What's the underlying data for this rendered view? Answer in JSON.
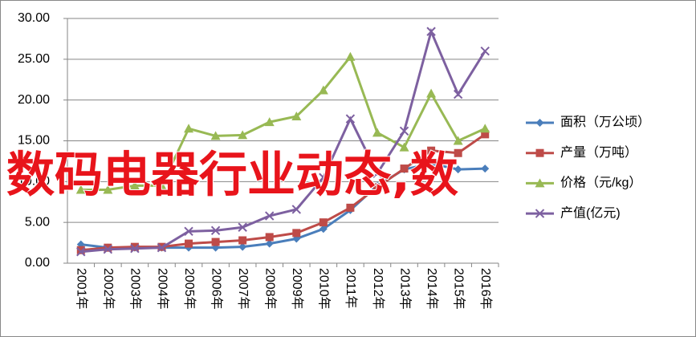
{
  "chart_data": {
    "type": "line",
    "categories": [
      "2001年",
      "2002年",
      "2003年",
      "2004年",
      "2005年",
      "2006年",
      "2007年",
      "2008年",
      "2009年",
      "2010年",
      "2011年",
      "2012年",
      "2013年",
      "2014年",
      "2015年",
      "2016年"
    ],
    "series": [
      {
        "name": "面积（万公顷）",
        "color": "#4a7ebb",
        "marker": "diamond",
        "values": [
          2.3,
          1.9,
          1.9,
          1.9,
          1.9,
          1.9,
          2.0,
          2.4,
          3.0,
          4.2,
          6.5,
          9.5,
          11.5,
          12.2,
          11.5,
          11.6
        ]
      },
      {
        "name": "产量（万吨）",
        "color": "#be4b48",
        "marker": "square",
        "values": [
          1.6,
          1.9,
          2.0,
          2.0,
          2.4,
          2.6,
          2.8,
          3.2,
          3.7,
          5.0,
          6.8,
          9.3,
          11.6,
          13.8,
          13.5,
          15.8
        ]
      },
      {
        "name": "价格（元/kg）",
        "color": "#98b954",
        "marker": "triangle",
        "values": [
          9.0,
          9.0,
          9.5,
          9.5,
          16.5,
          15.6,
          15.7,
          17.3,
          18.0,
          21.2,
          25.3,
          16.0,
          14.2,
          20.8,
          15.0,
          16.5
        ]
      },
      {
        "name": "产值(亿元)",
        "color": "#7d60a0",
        "marker": "x",
        "values": [
          1.4,
          1.7,
          1.8,
          1.9,
          3.9,
          4.0,
          4.4,
          5.8,
          6.6,
          10.5,
          17.7,
          11.0,
          16.2,
          28.4,
          20.7,
          26.0
        ]
      }
    ],
    "ylim": [
      0,
      30
    ],
    "yticks": [
      {
        "value": 0,
        "label": "0.00"
      },
      {
        "value": 5,
        "label": "5.00"
      },
      {
        "value": 10,
        "label": "10.00"
      },
      {
        "value": 15,
        "label": "15.00"
      },
      {
        "value": 20,
        "label": "20.00"
      },
      {
        "value": 25,
        "label": "25.00"
      },
      {
        "value": 30,
        "label": "30.00"
      }
    ],
    "grid": true,
    "legend": "right"
  },
  "overlay": "数码电器行业动态,数"
}
